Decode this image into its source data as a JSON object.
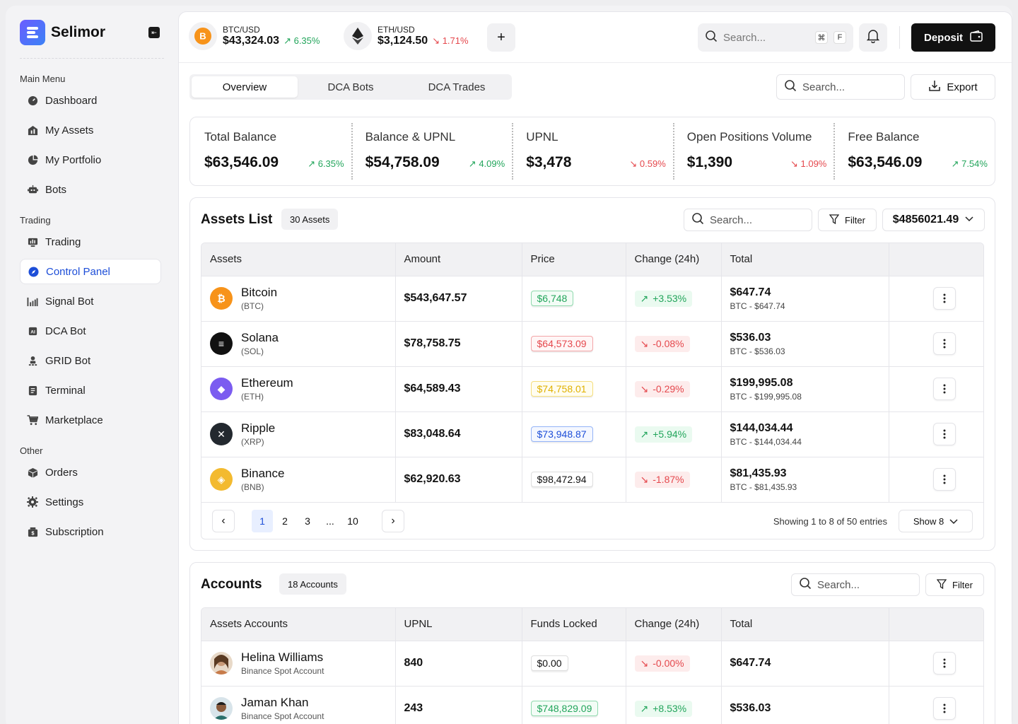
{
  "app": {
    "name": "Selimor"
  },
  "sidebar": {
    "sections": [
      {
        "label": "Main Menu",
        "items": [
          {
            "label": "Dashboard",
            "icon": "dashboard-icon"
          },
          {
            "label": "My Assets",
            "icon": "assets-icon"
          },
          {
            "label": "My Portfolio",
            "icon": "portfolio-icon"
          },
          {
            "label": "Bots",
            "icon": "bot-icon"
          }
        ]
      },
      {
        "label": "Trading",
        "items": [
          {
            "label": "Trading",
            "icon": "trading-icon"
          },
          {
            "label": "Control Panel",
            "icon": "compass-icon",
            "active": true
          },
          {
            "label": "Signal Bot",
            "icon": "signal-icon"
          },
          {
            "label": "DCA Bot",
            "icon": "ai-chip-icon"
          },
          {
            "label": "GRID Bot",
            "icon": "grid-bot-icon"
          },
          {
            "label": "Terminal",
            "icon": "terminal-icon"
          },
          {
            "label": "Marketplace",
            "icon": "cart-icon"
          }
        ]
      },
      {
        "label": "Other",
        "items": [
          {
            "label": "Orders",
            "icon": "box-icon"
          },
          {
            "label": "Settings",
            "icon": "gear-icon"
          },
          {
            "label": "Subscription",
            "icon": "subscription-icon"
          }
        ]
      }
    ]
  },
  "topbar": {
    "tickers": [
      {
        "pair": "BTC/USD",
        "price": "$43,324.03",
        "change": "6.35%",
        "direction": "up"
      },
      {
        "pair": "ETH/USD",
        "price": "$3,124.50",
        "change": "1.71%",
        "direction": "down"
      }
    ],
    "search_placeholder": "Search...",
    "kbd1": "⌘",
    "kbd2": "F",
    "deposit_label": "Deposit"
  },
  "tabs": [
    {
      "label": "Overview",
      "active": true
    },
    {
      "label": "DCA Bots"
    },
    {
      "label": "DCA Trades"
    }
  ],
  "toolbar": {
    "search_placeholder": "Search...",
    "export_label": "Export"
  },
  "stats": [
    {
      "label": "Total Balance",
      "value": "$63,546.09",
      "change": "6.35%",
      "direction": "up"
    },
    {
      "label": "Balance & UPNL",
      "value": "$54,758.09",
      "change": "4.09%",
      "direction": "up"
    },
    {
      "label": "UPNL",
      "value": "$3,478",
      "change": "0.59%",
      "direction": "down"
    },
    {
      "label": "Open Positions Volume",
      "value": "$1,390",
      "change": "1.09%",
      "direction": "down"
    },
    {
      "label": "Free Balance",
      "value": "$63,546.09",
      "change": "7.54%",
      "direction": "up"
    }
  ],
  "assets": {
    "title": "Assets List",
    "count": "30 Assets",
    "search_placeholder": "Search...",
    "filter_label": "Filter",
    "balance_select": "$4856021.49",
    "columns": [
      "Assets",
      "Amount",
      "Price",
      "Change (24h)",
      "Total"
    ],
    "rows": [
      {
        "name": "Bitcoin",
        "symbol": "(BTC)",
        "icon_color": "#f7931a",
        "amount": "$543,647.57",
        "price": "$6,748",
        "price_style": "green",
        "change": "+3.53%",
        "direction": "up",
        "total": "$647.74",
        "total_sub": "BTC - $647.74"
      },
      {
        "name": "Solana",
        "symbol": "(SOL)",
        "icon_color": "#111111",
        "amount": "$78,758.75",
        "price": "$64,573.09",
        "price_style": "red",
        "change": "-0.08%",
        "direction": "down",
        "total": "$536.03",
        "total_sub": "BTC - $536.03"
      },
      {
        "name": "Ethereum",
        "symbol": "(ETH)",
        "icon_color": "#7b5cf0",
        "amount": "$64,589.43",
        "price": "$74,758.01",
        "price_style": "yellow",
        "change": "-0.29%",
        "direction": "down",
        "total": "$199,995.08",
        "total_sub": "BTC - $199,995.08"
      },
      {
        "name": "Ripple",
        "symbol": "(XRP)",
        "icon_color": "#23292f",
        "amount": "$83,048.64",
        "price": "$73,948.87",
        "price_style": "blue",
        "change": "+5.94%",
        "direction": "up",
        "total": "$144,034.44",
        "total_sub": "BTC - $144,034.44"
      },
      {
        "name": "Binance",
        "symbol": "(BNB)",
        "icon_color": "#f3ba2f",
        "amount": "$62,920.63",
        "price": "$98,472.94",
        "price_style": "dark",
        "change": "-1.87%",
        "direction": "down",
        "total": "$81,435.93",
        "total_sub": "BTC - $81,435.93"
      }
    ],
    "pagination": {
      "pages": [
        "1",
        "2",
        "3",
        "...",
        "10"
      ],
      "info": "Showing 1 to 8 of 50 entries",
      "show_label": "Show 8"
    }
  },
  "accounts": {
    "title": "Accounts",
    "count": "18 Accounts",
    "search_placeholder": "Search...",
    "filter_label": "Filter",
    "columns": [
      "Assets Accounts",
      "UPNL",
      "Funds Locked",
      "Change (24h)",
      "Total"
    ],
    "rows": [
      {
        "name": "Helina Williams",
        "sub": "Binance Spot Account",
        "upnl": "840",
        "funds": "$0.00",
        "funds_style": "dark",
        "change": "-0.00%",
        "direction": "down",
        "total": "$647.74"
      },
      {
        "name": "Jaman Khan",
        "sub": "Binance Spot Account",
        "upnl": "243",
        "funds": "$748,829.09",
        "funds_style": "green",
        "change": "+8.53%",
        "direction": "up",
        "total": "$536.03"
      }
    ]
  },
  "colors": {
    "accent": "#1d4ed8",
    "up": "#22a55b",
    "down": "#e5484d"
  }
}
